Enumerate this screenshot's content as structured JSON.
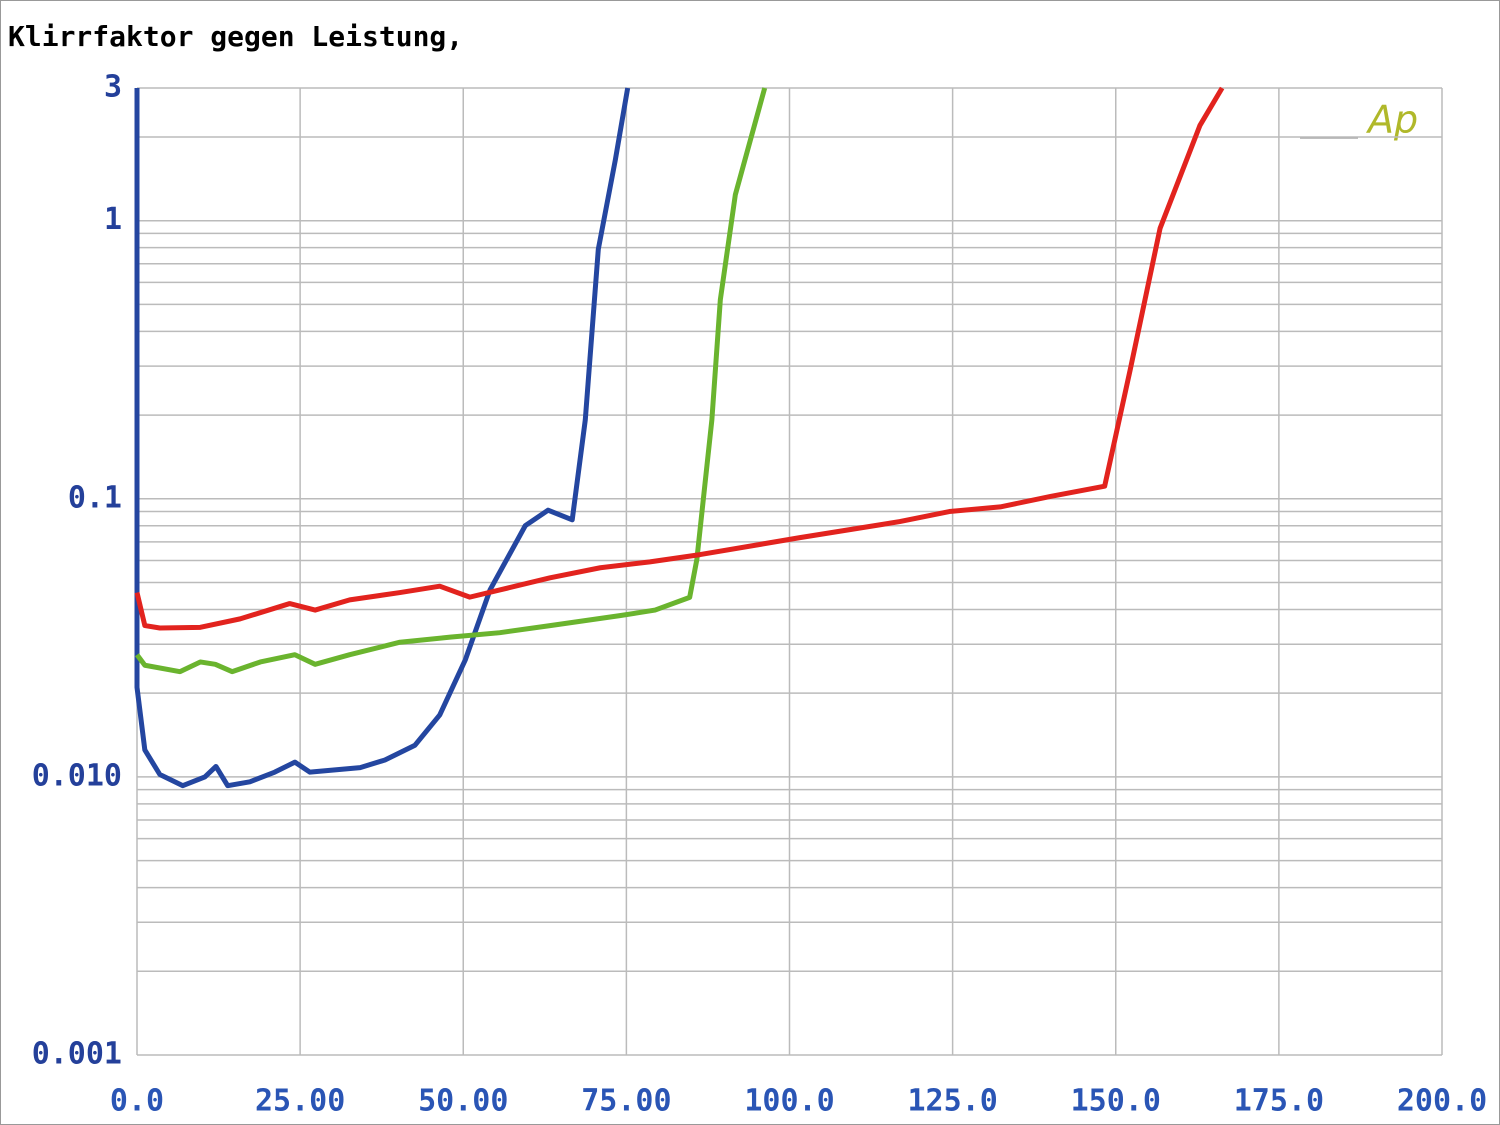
{
  "chart_data": {
    "type": "line",
    "title": "Klirrfaktor gegen Leistung,",
    "annotation": "Ap",
    "log_y": true,
    "grid": true,
    "minor_grid": true,
    "xlim": [
      0,
      200
    ],
    "ylim": [
      0.001,
      3
    ],
    "xticks": [
      {
        "value": 0,
        "label": "0.0"
      },
      {
        "value": 25,
        "label": "25.00"
      },
      {
        "value": 50,
        "label": "50.00"
      },
      {
        "value": 75,
        "label": "75.00"
      },
      {
        "value": 100,
        "label": "100.0"
      },
      {
        "value": 125,
        "label": "125.0"
      },
      {
        "value": 150,
        "label": "150.0"
      },
      {
        "value": 175,
        "label": "175.0"
      },
      {
        "value": 200,
        "label": "200.0"
      }
    ],
    "yticks": [
      0.001,
      {
        "value": 0.01,
        "label": "0.010"
      },
      0.1,
      1,
      3
    ],
    "series": [
      {
        "color": "#2446a0",
        "x": [
          0,
          0,
          1.2,
          3.5,
          7.0,
          10.4,
          12.1,
          13.9,
          17.3,
          21.1,
          24.2,
          26.5,
          34.2,
          38,
          42.6,
          46.4,
          50.3,
          54.1,
          59.5,
          63,
          66.7,
          68.7,
          70.7,
          73.3,
          75.2
        ],
        "values": [
          3,
          0.021,
          0.0125,
          0.0102,
          0.0093,
          0.01,
          0.0109,
          0.0093,
          0.0096,
          0.0104,
          0.0113,
          0.0104,
          0.0108,
          0.0115,
          0.013,
          0.0167,
          0.0263,
          0.047,
          0.08,
          0.091,
          0.084,
          0.192,
          0.79,
          1.65,
          3
        ]
      },
      {
        "color": "#6ab42e",
        "x": [
          0,
          1.2,
          6.6,
          9.7,
          12,
          14.6,
          18.9,
          24.2,
          27.3,
          32.6,
          40.3,
          48,
          55.6,
          63.3,
          74,
          79.4,
          84.7,
          85.8,
          88.1,
          89.4,
          91.7,
          96.2
        ],
        "values": [
          0.0275,
          0.0252,
          0.0239,
          0.0259,
          0.0254,
          0.0239,
          0.0259,
          0.0275,
          0.0254,
          0.0275,
          0.0305,
          0.0318,
          0.033,
          0.035,
          0.038,
          0.0398,
          0.0442,
          0.0605,
          0.192,
          0.52,
          1.24,
          3
        ]
      },
      {
        "color": "#e2231e",
        "x": [
          0,
          1.2,
          3.5,
          9.7,
          15.8,
          23.4,
          27.3,
          32.6,
          40.3,
          46.4,
          51,
          55.6,
          63.3,
          71,
          78.6,
          86.3,
          101.6,
          116.9,
          124.5,
          132.3,
          140,
          148.3,
          152.2,
          156.8,
          162.9,
          166.3
        ],
        "values": [
          0.046,
          0.035,
          0.0343,
          0.0345,
          0.037,
          0.042,
          0.0398,
          0.0433,
          0.046,
          0.0485,
          0.0443,
          0.047,
          0.052,
          0.0565,
          0.0593,
          0.063,
          0.0725,
          0.0828,
          0.09,
          0.0935,
          0.102,
          0.111,
          0.29,
          0.94,
          2.2,
          3
        ]
      }
    ]
  }
}
